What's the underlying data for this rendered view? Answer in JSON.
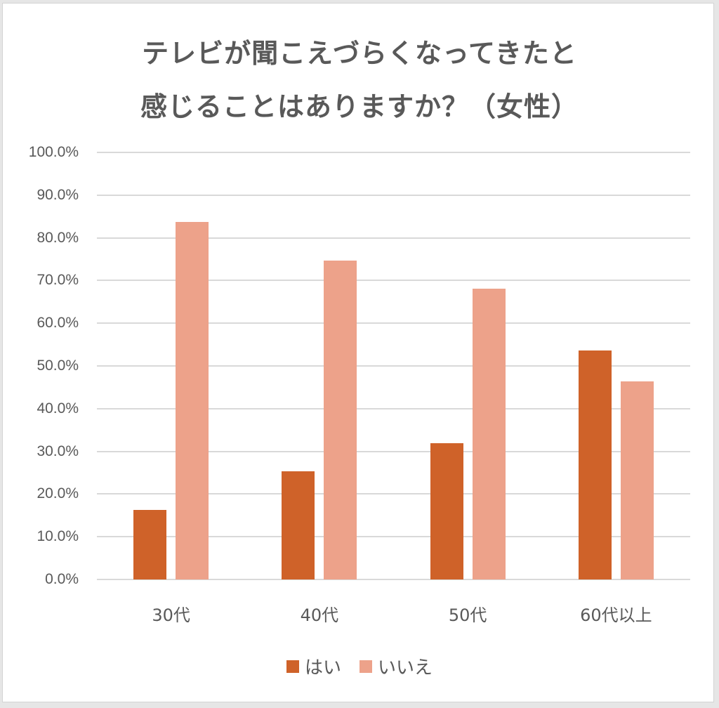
{
  "title": {
    "line1": "テレビが聞こえづらくなってきたと",
    "line2": "感じることはありますか？（女性）"
  },
  "colors": {
    "yes": "#CF6229",
    "no": "#EDA28A",
    "grid": "#D9D9D9",
    "text": "#595959"
  },
  "y_axis": {
    "ticks": [
      "100.0%",
      "90.0%",
      "80.0%",
      "70.0%",
      "60.0%",
      "50.0%",
      "40.0%",
      "30.0%",
      "20.0%",
      "10.0%",
      "0.0%"
    ]
  },
  "x_axis": {
    "categories": [
      "30代",
      "40代",
      "50代",
      "60代以上"
    ]
  },
  "legend": [
    {
      "label": "はい",
      "color": "#CF6229"
    },
    {
      "label": "いいえ",
      "color": "#EDA28A"
    }
  ],
  "chart_data": {
    "type": "bar",
    "title": "テレビが聞こえづらくなってきたと感じることはありますか？（女性）",
    "categories": [
      "30代",
      "40代",
      "50代",
      "60代以上"
    ],
    "series": [
      {
        "name": "はい",
        "values": [
          16.3,
          25.3,
          31.9,
          53.6
        ]
      },
      {
        "name": "いいえ",
        "values": [
          83.7,
          74.7,
          68.1,
          46.4
        ]
      }
    ],
    "xlabel": "",
    "ylabel": "",
    "ylim": [
      0,
      100
    ],
    "y_format": "percent_1dp",
    "grid": true,
    "legend_position": "bottom"
  }
}
